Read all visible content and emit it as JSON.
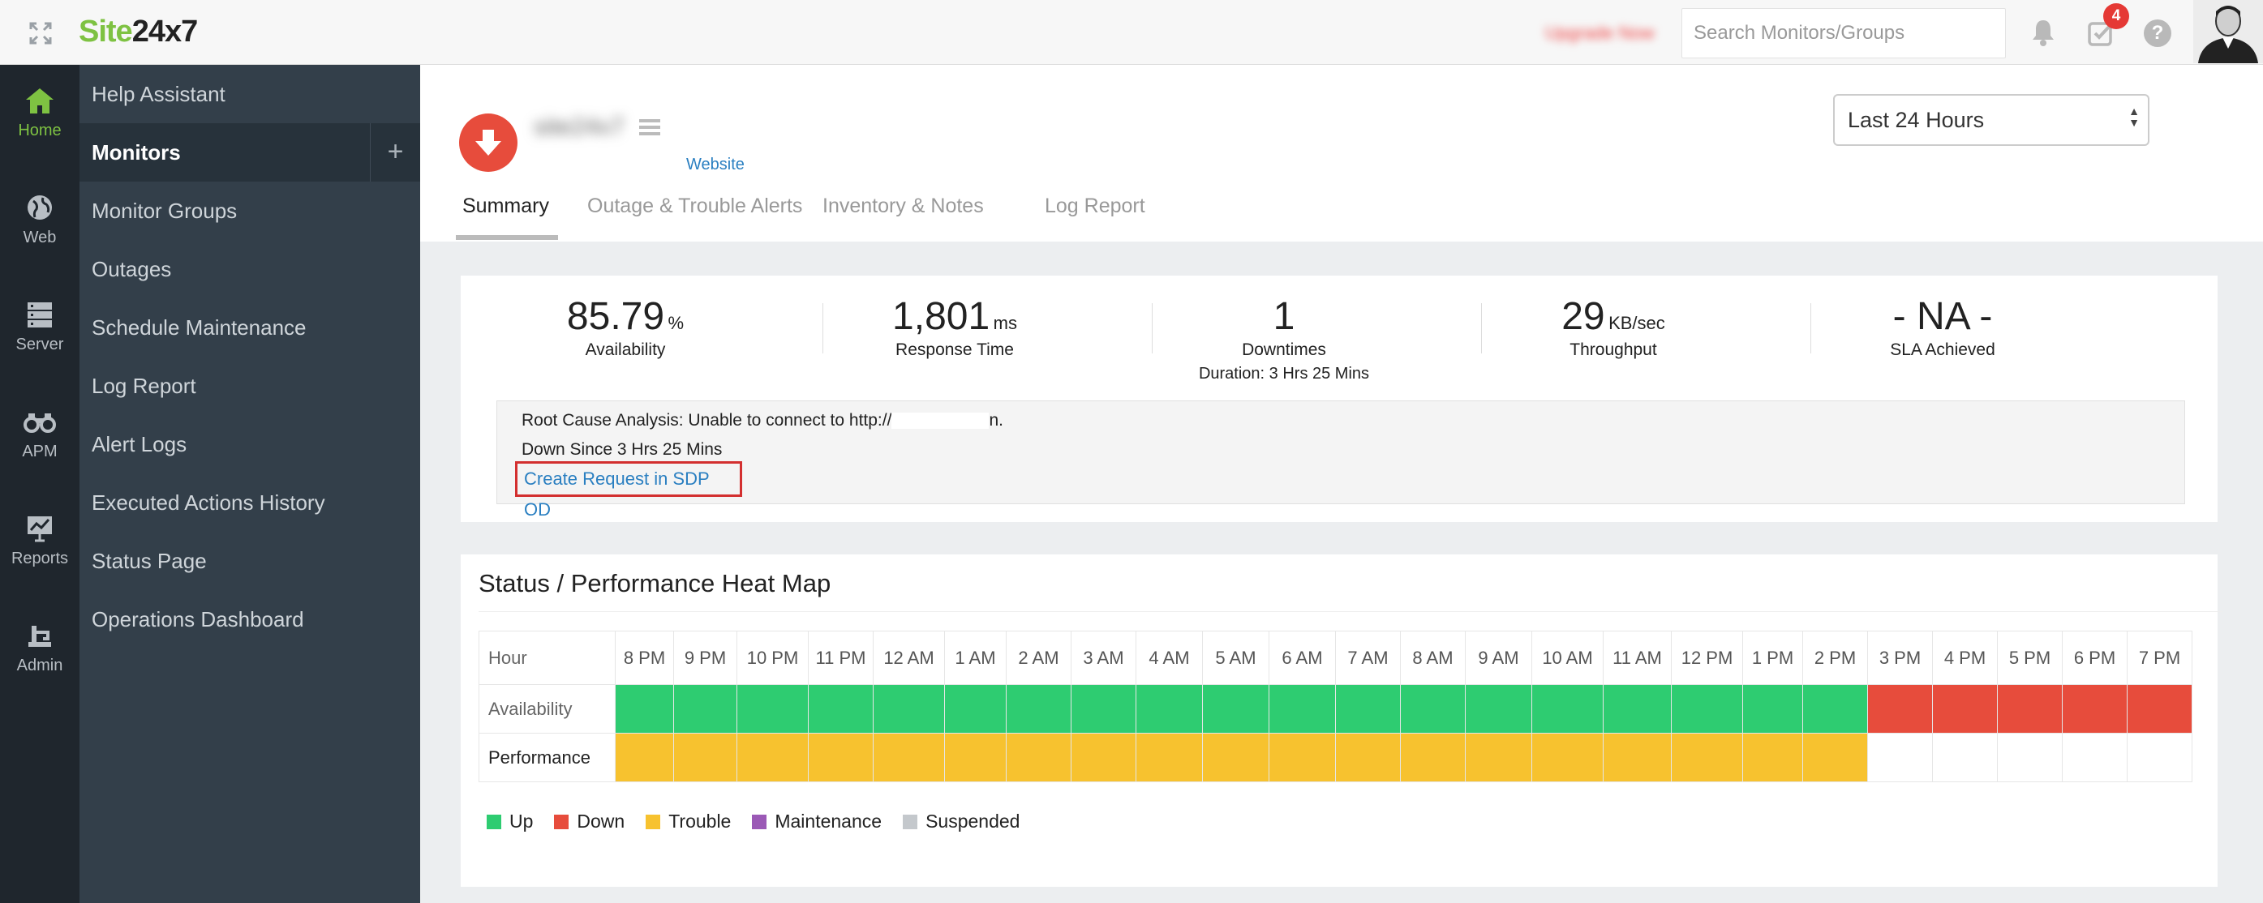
{
  "topbar": {
    "logo_site": "Site",
    "logo_rest": "24x7",
    "upgrade_label": "Upgrade Now",
    "search_placeholder": "Search Monitors/Groups",
    "tasks_badge": "4"
  },
  "rail": [
    {
      "label": "Home",
      "icon": "home-icon",
      "active": true
    },
    {
      "label": "Web",
      "icon": "globe-icon"
    },
    {
      "label": "Server",
      "icon": "server-icon"
    },
    {
      "label": "APM",
      "icon": "binoculars-icon"
    },
    {
      "label": "Reports",
      "icon": "reports-icon"
    },
    {
      "label": "Admin",
      "icon": "admin-icon"
    }
  ],
  "nav": {
    "items": [
      {
        "label": "Help Assistant"
      },
      {
        "label": "Monitors",
        "active": true
      },
      {
        "label": "Monitor Groups"
      },
      {
        "label": "Outages"
      },
      {
        "label": "Schedule Maintenance"
      },
      {
        "label": "Log Report"
      },
      {
        "label": "Alert Logs"
      },
      {
        "label": "Executed Actions History"
      },
      {
        "label": "Status Page"
      },
      {
        "label": "Operations Dashboard"
      }
    ],
    "add_label": "+"
  },
  "monitor": {
    "name": "site24x7",
    "type": "Website",
    "status_color": "#e74c3c"
  },
  "timerange": {
    "selected": "Last 24 Hours"
  },
  "tabs": [
    {
      "label": "Summary",
      "active": true
    },
    {
      "label": "Outage & Trouble Alerts"
    },
    {
      "label": "Inventory & Notes"
    },
    {
      "label": "Log Report"
    }
  ],
  "summary": {
    "stats": [
      {
        "value": "85.79",
        "unit": "%",
        "label": "Availability",
        "sub": ""
      },
      {
        "value": "1,801",
        "unit": "ms",
        "label": "Response Time",
        "sub": ""
      },
      {
        "value": "1",
        "unit": "",
        "label": "Downtimes",
        "sub": "Duration: 3 Hrs 25 Mins"
      },
      {
        "value": "29",
        "unit": "KB/sec",
        "label": "Throughput",
        "sub": ""
      },
      {
        "value": "- NA -",
        "unit": "",
        "label": "SLA Achieved",
        "sub": ""
      }
    ],
    "rca_line": "Root Cause Analysis: Unable to connect to http://",
    "rca_tail": "n.",
    "down_since": "Down Since 3 Hrs 25 Mins",
    "sdp_link": "Create Request in SDP OD"
  },
  "heatmap": {
    "title": "Status / Performance Heat Map",
    "hour_label": "Hour",
    "hours": [
      "8 PM",
      "9 PM",
      "10 PM",
      "11 PM",
      "12 AM",
      "1 AM",
      "2 AM",
      "3 AM",
      "4 AM",
      "5 AM",
      "6 AM",
      "7 AM",
      "8 AM",
      "9 AM",
      "10 AM",
      "11 AM",
      "12 PM",
      "1 PM",
      "2 PM",
      "3 PM",
      "4 PM",
      "5 PM",
      "6 PM",
      "7 PM"
    ],
    "rows": [
      {
        "label": "Availability",
        "states": [
          "up",
          "up",
          "up",
          "up",
          "up",
          "up",
          "up",
          "up",
          "up",
          "up",
          "up",
          "up",
          "up",
          "up",
          "up",
          "up",
          "up",
          "up",
          "up",
          "down",
          "down",
          "down",
          "down",
          "down"
        ]
      },
      {
        "label": "Performance",
        "states": [
          "trouble",
          "trouble",
          "trouble",
          "trouble",
          "trouble",
          "trouble",
          "trouble",
          "trouble",
          "trouble",
          "trouble",
          "trouble",
          "trouble",
          "trouble",
          "trouble",
          "trouble",
          "trouble",
          "trouble",
          "trouble",
          "trouble",
          "none",
          "none",
          "none",
          "none",
          "none"
        ]
      }
    ],
    "colors": {
      "up": "#2ecc71",
      "down": "#e74c3c",
      "trouble": "#f7c22f",
      "maintenance": "#9b59b6",
      "suspended": "#c4c8cc",
      "none": "#ffffff"
    },
    "legend": [
      {
        "label": "Up",
        "state": "up"
      },
      {
        "label": "Down",
        "state": "down"
      },
      {
        "label": "Trouble",
        "state": "trouble"
      },
      {
        "label": "Maintenance",
        "state": "maintenance"
      },
      {
        "label": "Suspended",
        "state": "suspended"
      }
    ]
  }
}
